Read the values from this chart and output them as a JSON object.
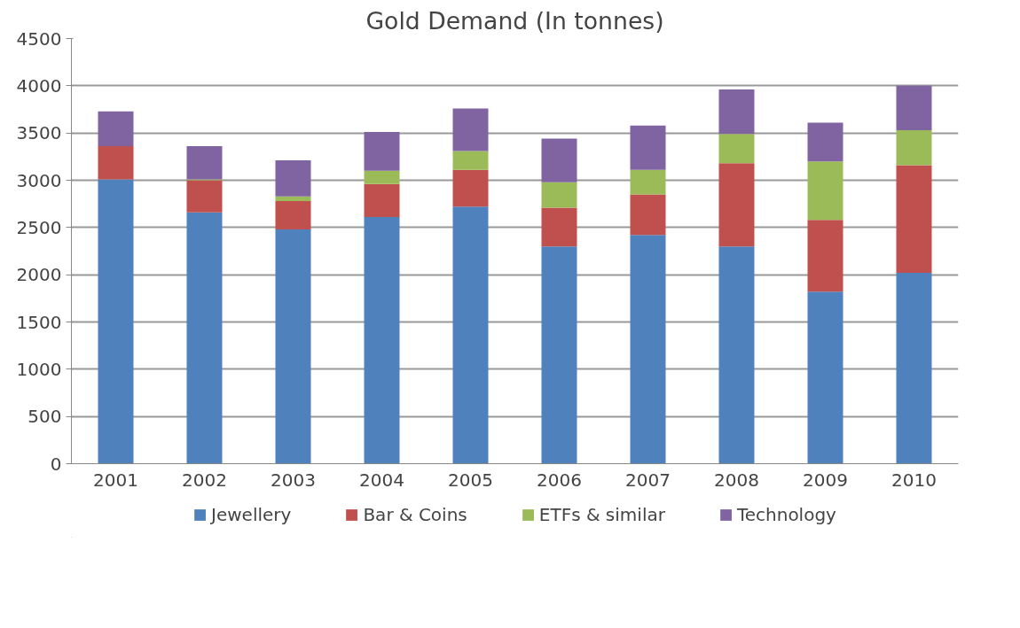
{
  "chart_data": {
    "type": "bar",
    "stacked": true,
    "title": "Gold Demand (In tonnes)",
    "categories": [
      "2001",
      "2002",
      "2003",
      "2004",
      "2005",
      "2006",
      "2007",
      "2008",
      "2009",
      "2010"
    ],
    "series": [
      {
        "name": "Jewellery",
        "color": "#4f81bd",
        "values": [
          3010,
          2660,
          2480,
          2610,
          2720,
          2300,
          2420,
          2300,
          1820,
          2020
        ]
      },
      {
        "name": "Bar & Coins",
        "color": "#c0504d",
        "values": [
          350,
          340,
          300,
          350,
          390,
          410,
          430,
          880,
          760,
          1140
        ]
      },
      {
        "name": "ETFs & similar",
        "color": "#9bbb59",
        "values": [
          0,
          10,
          50,
          140,
          200,
          270,
          260,
          310,
          620,
          370
        ]
      },
      {
        "name": "Technology",
        "color": "#8064a2",
        "values": [
          370,
          350,
          380,
          410,
          450,
          460,
          470,
          470,
          410,
          470
        ]
      }
    ],
    "ylim": [
      0,
      4500
    ],
    "yticks": [
      0,
      500,
      1000,
      1500,
      2000,
      2500,
      3000,
      3500,
      4000,
      4500
    ],
    "grid": "y",
    "legend": "bottom"
  }
}
